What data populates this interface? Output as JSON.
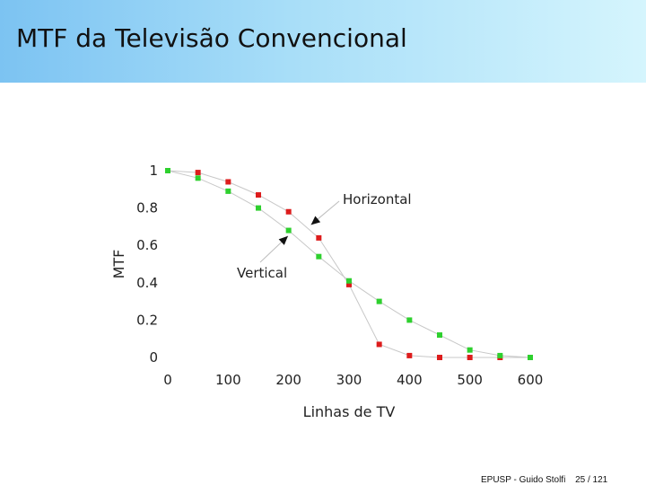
{
  "slide": {
    "title": "MTF da Televisão Convencional",
    "footer_text": "EPUSP - Guido Stolfi",
    "page": "25 / 121"
  },
  "chart_data": {
    "type": "scatter",
    "title": "",
    "xlabel": "Linhas de TV",
    "ylabel": "MTF",
    "xlim": [
      0,
      600
    ],
    "ylim": [
      0,
      1
    ],
    "x_ticks": [
      0,
      100,
      200,
      300,
      400,
      500,
      600
    ],
    "y_ticks": [
      0,
      0.2,
      0.4,
      0.6,
      0.8,
      1
    ],
    "y_tick_labels": [
      "0",
      "0.2",
      "0.4",
      "0.6",
      "0.8",
      "1"
    ],
    "grid": false,
    "series": [
      {
        "name": "Horizontal",
        "color": "#dd1c1c",
        "points": [
          [
            0,
            1.0
          ],
          [
            50,
            0.99
          ],
          [
            100,
            0.94
          ],
          [
            150,
            0.87
          ],
          [
            200,
            0.78
          ],
          [
            250,
            0.64
          ],
          [
            300,
            0.39
          ],
          [
            350,
            0.07
          ],
          [
            400,
            0.01
          ],
          [
            450,
            0.0
          ],
          [
            500,
            0.0
          ],
          [
            550,
            0.0
          ],
          [
            600,
            0.0
          ]
        ]
      },
      {
        "name": "Vertical",
        "color": "#2ed02e",
        "points": [
          [
            0,
            1.0
          ],
          [
            50,
            0.96
          ],
          [
            100,
            0.89
          ],
          [
            150,
            0.8
          ],
          [
            200,
            0.68
          ],
          [
            250,
            0.54
          ],
          [
            300,
            0.41
          ],
          [
            350,
            0.3
          ],
          [
            400,
            0.2
          ],
          [
            450,
            0.12
          ],
          [
            500,
            0.04
          ],
          [
            550,
            0.01
          ],
          [
            600,
            0.0
          ]
        ]
      }
    ],
    "annotations": [
      {
        "text": "Horizontal",
        "series": "Horizontal",
        "arrow_to": [
          237,
          0.71
        ]
      },
      {
        "text": "Vertical",
        "series": "Vertical",
        "arrow_to": [
          199,
          0.65
        ]
      }
    ]
  }
}
